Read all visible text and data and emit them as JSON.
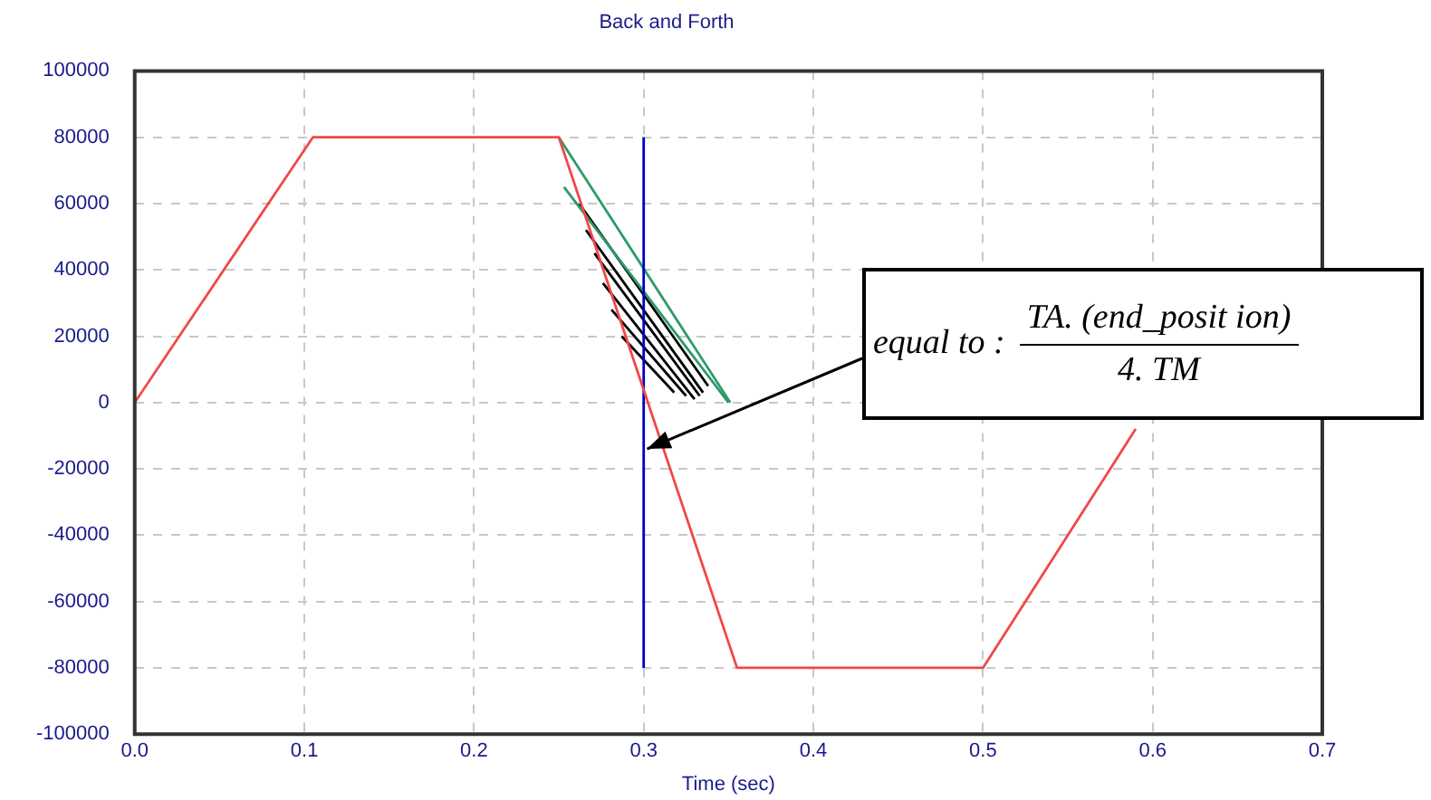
{
  "chart_data": {
    "type": "line",
    "title": "Back and Forth",
    "xlabel": "Time (sec)",
    "xlim": [
      0,
      0.7
    ],
    "xticks": [
      {
        "value": 0,
        "label": "0.0"
      },
      0.1,
      0.2,
      0.3,
      0.4,
      0.5,
      0.6,
      0.7
    ],
    "ylim": [
      -100000,
      100000
    ],
    "yticks": [
      -100000,
      -80000,
      -60000,
      -40000,
      -20000,
      0,
      20000,
      40000,
      60000,
      80000,
      100000
    ],
    "grid": true,
    "legend": false,
    "marker": "none",
    "line_style": "solid",
    "annotations": [
      {
        "text": "equal to :",
        "x": 0.302,
        "y": -14000
      },
      "TA. (end_posit ion)",
      "4. TM"
    ],
    "series": [
      {
        "color": "#f04848",
        "x": [
          0,
          0.105,
          0.25,
          0.355,
          0.5,
          0.59
        ],
        "values": [
          0,
          80000,
          80000,
          -80000,
          -80000,
          -8000
        ]
      },
      {
        "color": "#0000cc",
        "x": [
          0.3,
          0.3
        ],
        "values": [
          -80000,
          80000
        ]
      },
      {
        "color": "#2e9a6a",
        "x": [
          0.25,
          0.351
        ],
        "values": [
          80000,
          0
        ]
      },
      {
        "color": "#2e9a6a",
        "x": [
          0.253,
          0.35
        ],
        "values": [
          65000,
          0
        ]
      },
      {
        "color": "#000000",
        "x": [
          0.262,
          0.338
        ],
        "values": [
          60000,
          5000
        ]
      },
      {
        "color": "#000000",
        "x": [
          0.266,
          0.335
        ],
        "values": [
          52000,
          3000
        ]
      },
      {
        "color": "#000000",
        "x": [
          0.271,
          0.333
        ],
        "values": [
          45000,
          2000
        ]
      },
      {
        "color": "#000000",
        "x": [
          0.276,
          0.33
        ],
        "values": [
          36000,
          1000
        ]
      },
      {
        "color": "#000000",
        "x": [
          0.281,
          0.325
        ],
        "values": [
          28000,
          2000
        ]
      },
      {
        "color": "#000000",
        "x": [
          0.287,
          0.318
        ],
        "values": [
          20000,
          3000
        ]
      }
    ]
  }
}
